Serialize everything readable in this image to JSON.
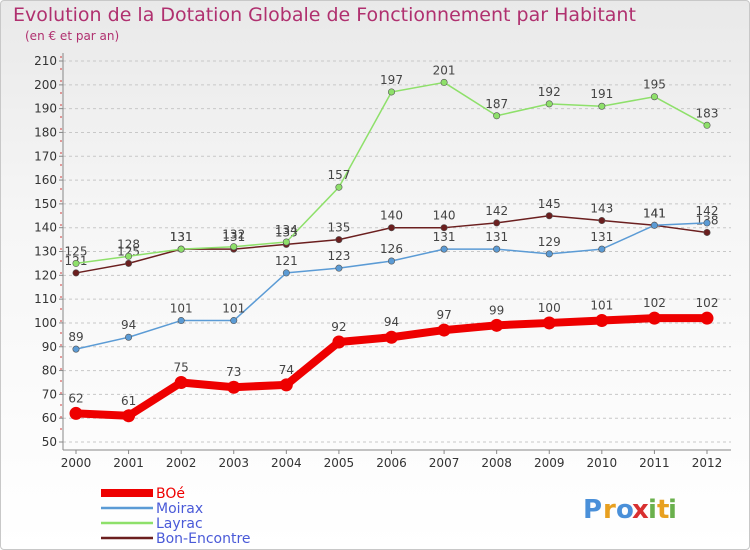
{
  "chart_data": {
    "type": "line",
    "title": "Evolution de la Dotation Globale de Fonctionnement par Habitant",
    "subtitle": "(en € et par an)",
    "x": [
      "2000",
      "2001",
      "2002",
      "2003",
      "2004",
      "2005",
      "2006",
      "2007",
      "2008",
      "2009",
      "2010",
      "2011",
      "2012"
    ],
    "ylim": [
      50,
      210
    ],
    "yticks": [
      50,
      60,
      70,
      80,
      90,
      100,
      110,
      120,
      130,
      140,
      150,
      160,
      170,
      180,
      190,
      200,
      210
    ],
    "grid": "horizontal dashed",
    "legend_position": "bottom-left",
    "series": [
      {
        "name": "BOé",
        "color": "#ee0000",
        "values": [
          62,
          61,
          75,
          73,
          74,
          92,
          94,
          97,
          99,
          100,
          101,
          102,
          102
        ]
      },
      {
        "name": "Moirax",
        "color": "#5b9bd5",
        "values": [
          89,
          94,
          101,
          101,
          121,
          123,
          126,
          131,
          131,
          129,
          131,
          141,
          142
        ]
      },
      {
        "name": "Layrac",
        "color": "#8ee06a",
        "values": [
          125,
          128,
          131,
          132,
          134,
          157,
          197,
          201,
          187,
          192,
          191,
          195,
          183
        ]
      },
      {
        "name": "Bon-Encontre",
        "color": "#6b1f1f",
        "values": [
          121,
          125,
          131,
          131,
          133,
          135,
          140,
          140,
          142,
          145,
          143,
          141,
          138
        ]
      }
    ]
  },
  "logo": {
    "letters": [
      "P",
      "r",
      "o",
      "x",
      "i",
      "t",
      "i"
    ],
    "colors": [
      "#4a90d9",
      "#e8a020",
      "#4a90d9",
      "#d83030",
      "#6ab04c",
      "#e8a020",
      "#6ab04c"
    ]
  }
}
